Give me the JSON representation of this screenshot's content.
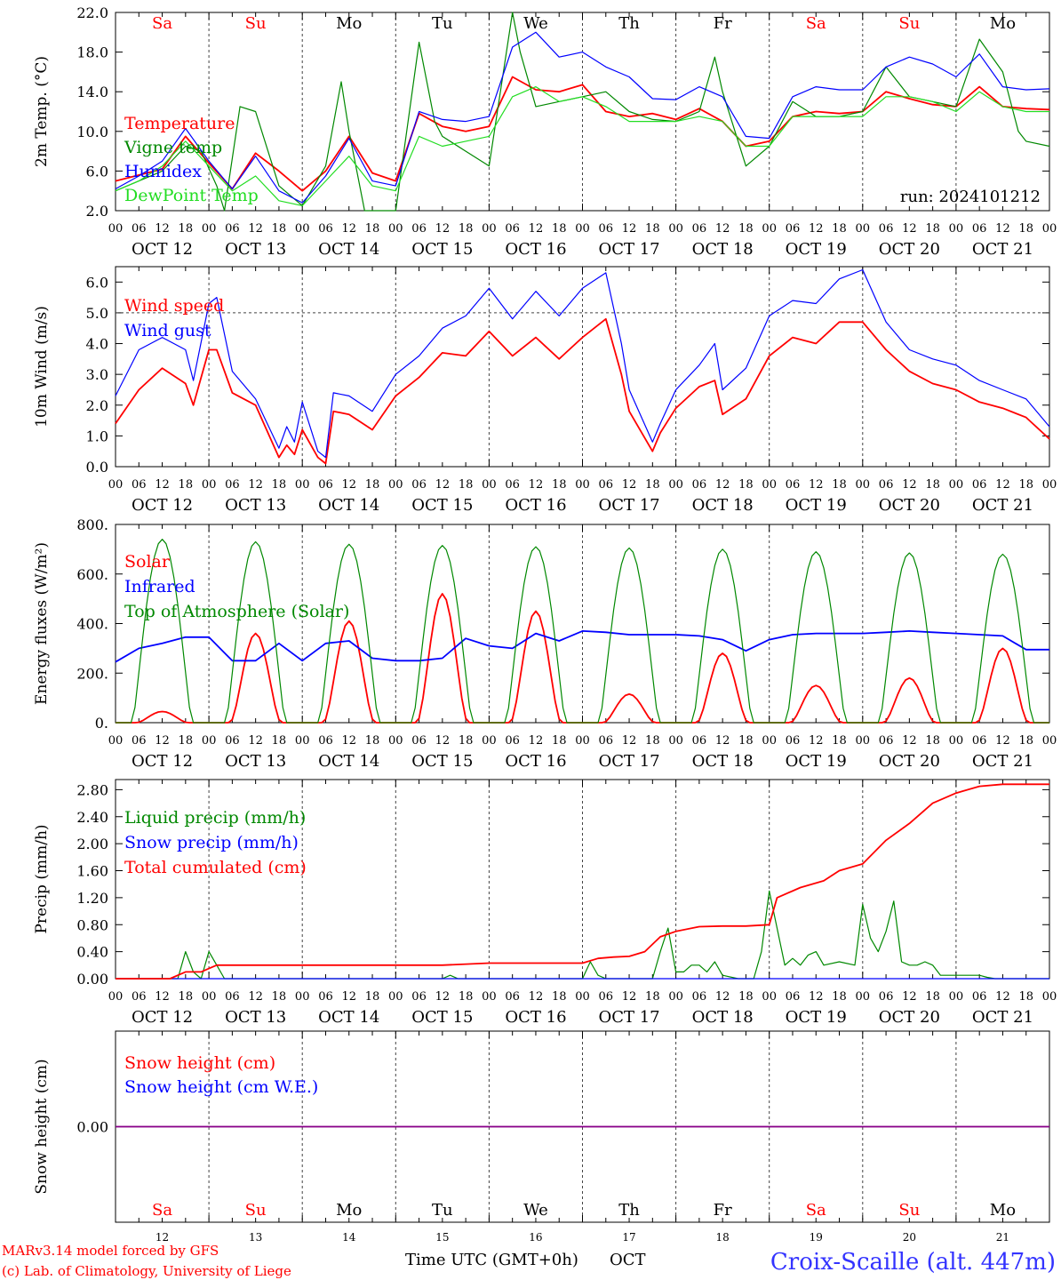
{
  "meta": {
    "run_label": "run: 2024101212",
    "footer_left_1": "MARv3.14 model forced by GFS",
    "footer_left_2": "(c) Lab. of Climatology, University of Liege",
    "footer_center": "Time UTC (GMT+0h)",
    "footer_month": "OCT",
    "station": "Croix-Scaille (alt. 447m)"
  },
  "colors": {
    "red": "#ff0000",
    "green": "#008800",
    "blue": "#0000ff",
    "lightgreen": "#22dd22",
    "purple": "#880088"
  },
  "time_axis": {
    "hour_labels": [
      "00",
      "06",
      "12",
      "18"
    ],
    "days": [
      "OCT 12",
      "OCT 13",
      "OCT 14",
      "OCT 15",
      "OCT 16",
      "OCT 17",
      "OCT 18",
      "OCT 19",
      "OCT 20",
      "OCT 21"
    ],
    "weekdays": [
      "Sa",
      "Su",
      "Mo",
      "Tu",
      "We",
      "Th",
      "Fr",
      "Sa",
      "Su",
      "Mo"
    ],
    "weekend_flags": [
      true,
      true,
      false,
      false,
      false,
      false,
      false,
      true,
      true,
      false
    ],
    "day_numbers": [
      "12",
      "13",
      "14",
      "15",
      "16",
      "17",
      "18",
      "19",
      "20",
      "21"
    ]
  },
  "chart_data": [
    {
      "type": "line",
      "id": "temp",
      "ylabel": "2m Temp. (°C)",
      "ylim": [
        2,
        22
      ],
      "yticks": [
        2,
        6,
        10,
        14,
        18,
        22
      ],
      "ytick_labels": [
        "2.0",
        "6.0",
        "10.0",
        "14.0",
        "18.0",
        "22.0"
      ],
      "x_unit": "hours since OCT 12 00 UTC",
      "series": [
        {
          "name": "Temperature",
          "color": "red",
          "x": [
            0,
            12,
            18,
            24,
            30,
            36,
            42,
            48,
            54,
            60,
            66,
            72,
            78,
            84,
            90,
            96,
            102,
            108,
            114,
            120,
            126,
            132,
            138,
            144,
            150,
            156,
            162,
            168,
            174,
            180,
            186,
            192,
            198,
            204,
            210,
            216,
            222,
            228,
            234,
            240
          ],
          "y": [
            5.0,
            6.2,
            9.5,
            6.8,
            4.2,
            7.8,
            6.0,
            4.0,
            6.0,
            9.5,
            5.8,
            5.0,
            11.8,
            10.5,
            10.0,
            10.5,
            15.5,
            14.2,
            14.0,
            14.7,
            12.0,
            11.5,
            11.8,
            11.2,
            12.3,
            11.0,
            8.5,
            9.0,
            11.5,
            12.0,
            11.8,
            12.0,
            14.0,
            13.3,
            12.7,
            12.5,
            14.5,
            12.5,
            12.3,
            12.2
          ]
        },
        {
          "name": "Vigne temp",
          "color": "green",
          "x": [
            0,
            6,
            12,
            18,
            22,
            26,
            28,
            32,
            36,
            42,
            48,
            54,
            58,
            60,
            64,
            66,
            72,
            78,
            82,
            84,
            90,
            96,
            102,
            104,
            108,
            114,
            120,
            126,
            132,
            138,
            144,
            150,
            154,
            156,
            162,
            168,
            174,
            180,
            186,
            192,
            198,
            204,
            210,
            216,
            222,
            228,
            232,
            234,
            240
          ],
          "y": [
            4.0,
            5.0,
            6.0,
            8.5,
            8.0,
            4.5,
            2.0,
            12.5,
            12.0,
            4.5,
            2.5,
            6.5,
            15.0,
            10.0,
            2.0,
            2.0,
            1.0,
            19.0,
            11.0,
            9.5,
            8.0,
            6.5,
            22.0,
            18.0,
            12.5,
            13.0,
            13.5,
            14.0,
            12.0,
            11.2,
            11.0,
            12.0,
            17.5,
            14.0,
            6.5,
            8.5,
            13.0,
            11.5,
            11.5,
            12.0,
            16.5,
            13.5,
            13.0,
            12.5,
            19.3,
            16.0,
            10.0,
            9.0,
            8.5
          ]
        },
        {
          "name": "Humidex",
          "color": "blue",
          "x": [
            0,
            6,
            12,
            18,
            24,
            30,
            36,
            42,
            48,
            54,
            60,
            66,
            72,
            78,
            84,
            90,
            96,
            102,
            108,
            114,
            120,
            126,
            132,
            138,
            144,
            150,
            156,
            162,
            168,
            174,
            180,
            186,
            192,
            198,
            204,
            210,
            216,
            222,
            228,
            234,
            240
          ],
          "y": [
            4.2,
            5.5,
            7.0,
            10.3,
            7.0,
            4.2,
            7.5,
            4.0,
            2.8,
            5.5,
            9.3,
            5.0,
            4.5,
            12.0,
            11.2,
            11.0,
            11.5,
            18.5,
            20.0,
            17.5,
            18.0,
            16.5,
            15.5,
            13.3,
            13.2,
            14.5,
            13.5,
            9.5,
            9.3,
            13.5,
            14.5,
            14.2,
            14.2,
            16.5,
            17.5,
            16.8,
            15.5,
            17.8,
            14.5,
            14.2,
            14.3
          ]
        },
        {
          "name": "DewPoint Temp",
          "color": "lightgreen",
          "x": [
            0,
            6,
            12,
            18,
            24,
            30,
            36,
            42,
            48,
            54,
            60,
            66,
            72,
            78,
            84,
            90,
            96,
            102,
            108,
            114,
            120,
            126,
            132,
            138,
            144,
            150,
            156,
            162,
            168,
            174,
            180,
            186,
            192,
            198,
            204,
            210,
            216,
            222,
            228,
            234,
            240
          ],
          "y": [
            4.0,
            5.0,
            6.5,
            9.0,
            6.5,
            4.0,
            5.5,
            3.0,
            2.5,
            5.0,
            7.5,
            4.5,
            4.0,
            9.5,
            8.5,
            9.0,
            9.5,
            13.5,
            14.5,
            13.0,
            13.5,
            12.5,
            11.0,
            11.0,
            11.0,
            11.5,
            11.0,
            8.5,
            8.5,
            11.5,
            11.5,
            11.5,
            11.5,
            13.5,
            13.5,
            13.0,
            12.0,
            14.0,
            12.5,
            12.0,
            12.0
          ]
        }
      ]
    },
    {
      "type": "line",
      "id": "wind",
      "ylabel": "10m Wind (m/s)",
      "ylim": [
        0,
        6.5
      ],
      "yticks": [
        0,
        1,
        2,
        3,
        4,
        5,
        6
      ],
      "ytick_labels": [
        "0.0",
        "1.0",
        "2.0",
        "3.0",
        "4.0",
        "5.0",
        "6.0"
      ],
      "reference_line": 5,
      "series": [
        {
          "name": "Wind speed",
          "color": "red",
          "x": [
            0,
            6,
            12,
            18,
            20,
            24,
            26,
            30,
            36,
            42,
            44,
            46,
            48,
            52,
            54,
            56,
            60,
            66,
            72,
            78,
            84,
            90,
            96,
            102,
            108,
            114,
            120,
            126,
            130,
            132,
            138,
            140,
            144,
            150,
            154,
            156,
            162,
            168,
            174,
            180,
            186,
            192,
            198,
            204,
            210,
            216,
            222,
            228,
            234,
            240
          ],
          "y": [
            1.4,
            2.5,
            3.2,
            2.7,
            2.0,
            3.8,
            3.8,
            2.4,
            2.0,
            0.3,
            0.7,
            0.4,
            1.2,
            0.3,
            0.1,
            1.8,
            1.7,
            1.2,
            2.3,
            2.9,
            3.7,
            3.6,
            4.4,
            3.6,
            4.2,
            3.5,
            4.2,
            4.8,
            3.0,
            1.8,
            0.5,
            1.1,
            1.9,
            2.6,
            2.8,
            1.7,
            2.2,
            3.6,
            4.2,
            4.0,
            4.7,
            4.7,
            3.8,
            3.1,
            2.7,
            2.5,
            2.1,
            1.9,
            1.6,
            0.9
          ]
        },
        {
          "name": "Wind gust",
          "color": "blue",
          "x": [
            0,
            6,
            12,
            18,
            20,
            24,
            26,
            30,
            36,
            42,
            44,
            46,
            48,
            52,
            54,
            56,
            60,
            66,
            72,
            78,
            84,
            90,
            96,
            102,
            108,
            114,
            120,
            126,
            130,
            132,
            138,
            140,
            144,
            150,
            154,
            156,
            162,
            168,
            174,
            180,
            186,
            192,
            198,
            204,
            210,
            216,
            222,
            228,
            234,
            240
          ],
          "y": [
            2.3,
            3.8,
            4.2,
            3.8,
            2.8,
            5.3,
            5.5,
            3.1,
            2.2,
            0.6,
            1.3,
            0.8,
            2.1,
            0.5,
            0.3,
            2.4,
            2.3,
            1.8,
            3.0,
            3.6,
            4.5,
            4.9,
            5.8,
            4.8,
            5.7,
            4.9,
            5.8,
            6.3,
            4.0,
            2.5,
            0.8,
            1.4,
            2.5,
            3.3,
            4.0,
            2.5,
            3.2,
            4.9,
            5.4,
            5.3,
            6.1,
            6.4,
            4.7,
            3.8,
            3.5,
            3.3,
            2.8,
            2.5,
            2.2,
            1.3
          ]
        }
      ]
    },
    {
      "type": "line",
      "id": "flux",
      "ylabel": "Energy fluxes (W/m²)",
      "ylim": [
        0,
        800
      ],
      "yticks": [
        0,
        200,
        400,
        600,
        800
      ],
      "ytick_labels": [
        "0.",
        "200.",
        "400.",
        "600.",
        "800."
      ],
      "series": [
        {
          "name": "Solar",
          "color": "red",
          "peak_hours": [
            12,
            36,
            60,
            84,
            108,
            132,
            156,
            180,
            204,
            228
          ],
          "peak_values": [
            45,
            360,
            410,
            520,
            450,
            115,
            280,
            150,
            180,
            300
          ]
        },
        {
          "name": "Infrared",
          "color": "blue",
          "x": [
            0,
            6,
            12,
            18,
            24,
            30,
            36,
            42,
            48,
            54,
            60,
            66,
            72,
            78,
            84,
            90,
            96,
            102,
            108,
            114,
            120,
            126,
            132,
            138,
            144,
            150,
            156,
            162,
            168,
            174,
            180,
            186,
            192,
            198,
            204,
            210,
            216,
            222,
            228,
            234,
            240
          ],
          "y": [
            245,
            300,
            320,
            345,
            345,
            250,
            250,
            320,
            250,
            320,
            330,
            260,
            250,
            250,
            260,
            340,
            310,
            300,
            360,
            330,
            370,
            365,
            355,
            355,
            355,
            350,
            335,
            290,
            335,
            355,
            360,
            360,
            360,
            365,
            370,
            365,
            360,
            355,
            350,
            295,
            295
          ]
        },
        {
          "name": "Top of Atmosphere (Solar)",
          "color": "green",
          "peak_hours": [
            12,
            36,
            60,
            84,
            108,
            132,
            156,
            180,
            204,
            228
          ],
          "peak_values": [
            740,
            730,
            720,
            715,
            710,
            705,
            700,
            690,
            685,
            680
          ]
        }
      ]
    },
    {
      "type": "line",
      "id": "precip",
      "ylabel": "Precip (mm/h)",
      "ylim": [
        0,
        2.95
      ],
      "yticks": [
        0,
        0.4,
        0.8,
        1.2,
        1.6,
        2.0,
        2.4,
        2.8
      ],
      "ytick_labels": [
        "0.00",
        "0.40",
        "0.80",
        "1.20",
        "1.60",
        "2.00",
        "2.40",
        "2.80"
      ],
      "series": [
        {
          "name": "Liquid precip (mm/h)",
          "color": "green",
          "x": [
            0,
            16,
            18,
            20,
            22,
            24,
            26,
            28,
            30,
            40,
            84,
            86,
            88,
            120,
            122,
            124,
            126,
            132,
            138,
            140,
            142,
            144,
            146,
            148,
            150,
            152,
            154,
            156,
            160,
            162,
            164,
            166,
            168,
            172,
            174,
            176,
            178,
            180,
            182,
            186,
            190,
            192,
            194,
            196,
            198,
            200,
            202,
            204,
            206,
            208,
            210,
            212,
            214,
            216,
            218,
            220,
            222,
            224,
            226,
            240
          ],
          "y": [
            0,
            0,
            0.4,
            0.1,
            0,
            0.4,
            0.2,
            0,
            0,
            0,
            0,
            0.05,
            0,
            0,
            0.25,
            0.05,
            0,
            0,
            0,
            0.4,
            0.75,
            0.1,
            0.1,
            0.2,
            0.2,
            0.1,
            0.25,
            0.05,
            0,
            0,
            0,
            0.4,
            1.3,
            0.2,
            0.3,
            0.2,
            0.35,
            0.4,
            0.2,
            0.25,
            0.2,
            1.1,
            0.6,
            0.4,
            0.7,
            1.15,
            0.25,
            0.2,
            0.2,
            0.25,
            0.2,
            0.05,
            0.05,
            0.05,
            0.05,
            0.05,
            0.05,
            0.02,
            0,
            0
          ]
        },
        {
          "name": "Snow precip (mm/h)",
          "color": "blue",
          "x": [
            0,
            240
          ],
          "y": [
            0,
            0
          ]
        },
        {
          "name": "Total cumulated (cm)",
          "color": "red",
          "x": [
            0,
            14,
            18,
            22,
            24,
            26,
            28,
            30,
            84,
            96,
            120,
            124,
            128,
            132,
            136,
            140,
            144,
            150,
            156,
            162,
            168,
            170,
            176,
            182,
            186,
            192,
            198,
            204,
            210,
            216,
            222,
            228,
            240
          ],
          "y": [
            0,
            0,
            0.1,
            0.1,
            0.15,
            0.2,
            0.2,
            0.2,
            0.2,
            0.23,
            0.23,
            0.3,
            0.32,
            0.33,
            0.4,
            0.62,
            0.7,
            0.77,
            0.78,
            0.78,
            0.8,
            1.2,
            1.35,
            1.45,
            1.6,
            1.7,
            2.05,
            2.3,
            2.6,
            2.75,
            2.85,
            2.88,
            2.88
          ]
        }
      ]
    },
    {
      "type": "line",
      "id": "snow",
      "ylabel": "Snow height (cm)",
      "ylim": [
        -1,
        1
      ],
      "yticks": [
        0
      ],
      "ytick_labels": [
        "0.00"
      ],
      "series": [
        {
          "name": "Snow height (cm)",
          "color": "red",
          "x": [
            0,
            240
          ],
          "y": [
            0,
            0
          ]
        },
        {
          "name": "Snow height (cm W.E.)",
          "color": "blue",
          "x": [
            0,
            240
          ],
          "y": [
            0,
            0
          ]
        }
      ]
    }
  ]
}
